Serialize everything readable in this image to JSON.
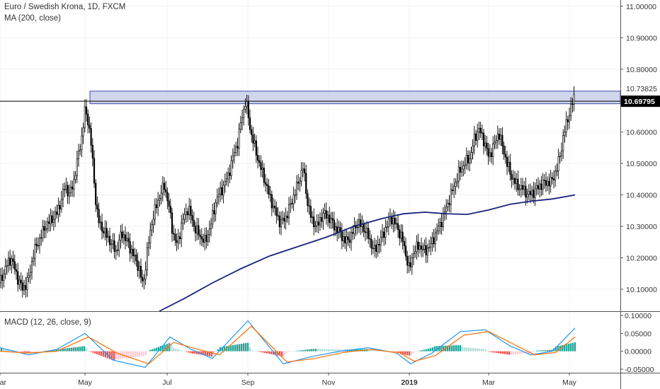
{
  "header": {
    "title": "Euro / Swedish Krona, 1D, FXCM",
    "ma_label": "MA (200, close)",
    "macd_label": "MACD (12, 26, close, 9)"
  },
  "colors": {
    "up": "#4a4a4a",
    "candle_body": "#000000",
    "ma": "#1a237e",
    "macd_line": "#2196f3",
    "signal_line": "#ff6d00",
    "hist_pos_strong": "#26a69a",
    "hist_pos_weak": "#b2dfdb",
    "hist_neg_strong": "#ef5350",
    "hist_neg_weak": "#ffcdd2",
    "zone_fill": "#c5cae9",
    "zone_stroke": "#3949ab"
  },
  "chart_data": [
    {
      "type": "candlestick",
      "title": "Euro / Swedish Krona, 1D, FXCM",
      "x_ticks": [
        "Mar",
        "May",
        "Jul",
        "Sep",
        "Nov",
        "2019",
        "Mar",
        "May"
      ],
      "y_ticks": [
        "11.00000",
        "10.90000",
        "10.80000",
        "10.70000",
        "10.60000",
        "10.50000",
        "10.40000",
        "10.30000",
        "10.20000",
        "10.10000"
      ],
      "ylim": [
        10.03,
        11.02
      ],
      "price_labels": [
        "10.73825",
        "10.69795"
      ],
      "current_price": 10.69795,
      "last_high": 10.73825,
      "resistance_zone": [
        10.69,
        10.73
      ],
      "close_path": [
        [
          0,
          10.12
        ],
        [
          8,
          10.17
        ],
        [
          16,
          10.2
        ],
        [
          24,
          10.14
        ],
        [
          32,
          10.1
        ],
        [
          40,
          10.13
        ],
        [
          48,
          10.22
        ],
        [
          56,
          10.26
        ],
        [
          64,
          10.3
        ],
        [
          72,
          10.32
        ],
        [
          80,
          10.34
        ],
        [
          86,
          10.38
        ],
        [
          92,
          10.43
        ],
        [
          98,
          10.4
        ],
        [
          104,
          10.44
        ],
        [
          110,
          10.52
        ],
        [
          116,
          10.59
        ],
        [
          120,
          10.67
        ],
        [
          124,
          10.64
        ],
        [
          128,
          10.58
        ],
        [
          132,
          10.47
        ],
        [
          136,
          10.36
        ],
        [
          140,
          10.31
        ],
        [
          148,
          10.28
        ],
        [
          156,
          10.25
        ],
        [
          164,
          10.22
        ],
        [
          172,
          10.28
        ],
        [
          180,
          10.25
        ],
        [
          188,
          10.21
        ],
        [
          196,
          10.17
        ],
        [
          202,
          10.11
        ],
        [
          208,
          10.22
        ],
        [
          214,
          10.31
        ],
        [
          220,
          10.36
        ],
        [
          226,
          10.4
        ],
        [
          232,
          10.43
        ],
        [
          238,
          10.37
        ],
        [
          244,
          10.28
        ],
        [
          250,
          10.24
        ],
        [
          258,
          10.32
        ],
        [
          266,
          10.36
        ],
        [
          274,
          10.3
        ],
        [
          282,
          10.27
        ],
        [
          290,
          10.25
        ],
        [
          298,
          10.31
        ],
        [
          306,
          10.39
        ],
        [
          314,
          10.42
        ],
        [
          322,
          10.46
        ],
        [
          330,
          10.53
        ],
        [
          336,
          10.57
        ],
        [
          340,
          10.63
        ],
        [
          344,
          10.67
        ],
        [
          347,
          10.7
        ],
        [
          350,
          10.66
        ],
        [
          354,
          10.6
        ],
        [
          360,
          10.55
        ],
        [
          366,
          10.5
        ],
        [
          372,
          10.46
        ],
        [
          380,
          10.4
        ],
        [
          388,
          10.35
        ],
        [
          396,
          10.31
        ],
        [
          404,
          10.33
        ],
        [
          412,
          10.38
        ],
        [
          420,
          10.43
        ],
        [
          428,
          10.49
        ],
        [
          434,
          10.38
        ],
        [
          440,
          10.32
        ],
        [
          448,
          10.3
        ],
        [
          456,
          10.34
        ],
        [
          464,
          10.33
        ],
        [
          472,
          10.3
        ],
        [
          480,
          10.28
        ],
        [
          488,
          10.25
        ],
        [
          496,
          10.27
        ],
        [
          504,
          10.31
        ],
        [
          512,
          10.3
        ],
        [
          520,
          10.27
        ],
        [
          528,
          10.22
        ],
        [
          536,
          10.25
        ],
        [
          544,
          10.29
        ],
        [
          552,
          10.33
        ],
        [
          560,
          10.3
        ],
        [
          568,
          10.26
        ],
        [
          574,
          10.2
        ],
        [
          578,
          10.16
        ],
        [
          584,
          10.22
        ],
        [
          592,
          10.24
        ],
        [
          600,
          10.22
        ],
        [
          608,
          10.24
        ],
        [
          616,
          10.28
        ],
        [
          624,
          10.32
        ],
        [
          632,
          10.37
        ],
        [
          640,
          10.42
        ],
        [
          648,
          10.47
        ],
        [
          656,
          10.5
        ],
        [
          664,
          10.52
        ],
        [
          670,
          10.58
        ],
        [
          676,
          10.61
        ],
        [
          684,
          10.57
        ],
        [
          690,
          10.52
        ],
        [
          698,
          10.56
        ],
        [
          704,
          10.6
        ],
        [
          710,
          10.55
        ],
        [
          716,
          10.5
        ],
        [
          722,
          10.46
        ],
        [
          730,
          10.43
        ],
        [
          738,
          10.42
        ],
        [
          746,
          10.4
        ],
        [
          754,
          10.41
        ],
        [
          762,
          10.43
        ],
        [
          770,
          10.44
        ],
        [
          778,
          10.44
        ],
        [
          786,
          10.48
        ],
        [
          792,
          10.54
        ],
        [
          796,
          10.59
        ],
        [
          800,
          10.63
        ],
        [
          804,
          10.66
        ],
        [
          808,
          10.69
        ],
        [
          812,
          10.72
        ]
      ],
      "ma_200": [
        [
          225,
          10.03
        ],
        [
          260,
          10.07
        ],
        [
          300,
          10.12
        ],
        [
          340,
          10.165
        ],
        [
          380,
          10.205
        ],
        [
          420,
          10.235
        ],
        [
          460,
          10.265
        ],
        [
          500,
          10.3
        ],
        [
          540,
          10.325
        ],
        [
          570,
          10.34
        ],
        [
          600,
          10.345
        ],
        [
          630,
          10.34
        ],
        [
          660,
          10.338
        ],
        [
          690,
          10.352
        ],
        [
          720,
          10.37
        ],
        [
          750,
          10.38
        ],
        [
          780,
          10.387
        ],
        [
          812,
          10.4
        ]
      ]
    },
    {
      "type": "macd",
      "title": "MACD (12, 26, close, 9)",
      "y_ticks": [
        "0.10000",
        "0.05000",
        "0.00000",
        "-0.05000"
      ],
      "ylim": [
        -0.06,
        0.11
      ],
      "macd": [
        [
          0,
          0.01
        ],
        [
          40,
          -0.01
        ],
        [
          80,
          0.005
        ],
        [
          120,
          0.05
        ],
        [
          160,
          -0.025
        ],
        [
          205,
          -0.045
        ],
        [
          240,
          0.04
        ],
        [
          270,
          0.005
        ],
        [
          300,
          -0.02
        ],
        [
          350,
          0.085
        ],
        [
          400,
          -0.035
        ],
        [
          440,
          -0.015
        ],
        [
          480,
          0.0
        ],
        [
          520,
          0.01
        ],
        [
          560,
          -0.005
        ],
        [
          580,
          -0.035
        ],
        [
          610,
          -0.005
        ],
        [
          650,
          0.055
        ],
        [
          685,
          0.06
        ],
        [
          720,
          0.015
        ],
        [
          750,
          -0.01
        ],
        [
          780,
          0.0
        ],
        [
          812,
          0.065
        ]
      ],
      "signal": [
        [
          0,
          0.0
        ],
        [
          40,
          -0.005
        ],
        [
          80,
          0.0
        ],
        [
          125,
          0.04
        ],
        [
          165,
          -0.005
        ],
        [
          210,
          -0.035
        ],
        [
          245,
          0.025
        ],
        [
          280,
          0.005
        ],
        [
          310,
          -0.01
        ],
        [
          355,
          0.07
        ],
        [
          405,
          -0.03
        ],
        [
          445,
          -0.02
        ],
        [
          485,
          -0.003
        ],
        [
          525,
          0.005
        ],
        [
          565,
          -0.005
        ],
        [
          585,
          -0.028
        ],
        [
          615,
          -0.012
        ],
        [
          655,
          0.045
        ],
        [
          690,
          0.055
        ],
        [
          725,
          0.02
        ],
        [
          755,
          -0.01
        ],
        [
          785,
          -0.003
        ],
        [
          812,
          0.04
        ]
      ]
    }
  ]
}
